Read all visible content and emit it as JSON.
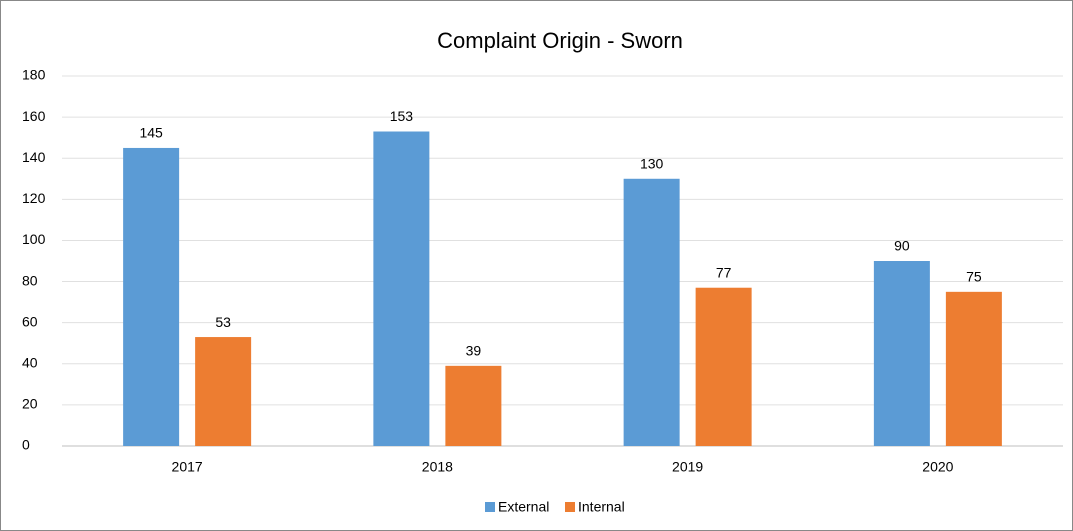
{
  "chart_data": {
    "type": "bar",
    "title": "Complaint Origin - Sworn",
    "categories": [
      "2017",
      "2018",
      "2019",
      "2020"
    ],
    "series": [
      {
        "name": "External",
        "color": "#5b9bd5",
        "values": [
          145,
          153,
          130,
          90
        ]
      },
      {
        "name": "Internal",
        "color": "#ed7d31",
        "values": [
          53,
          39,
          77,
          75
        ]
      }
    ],
    "ylim": [
      0,
      180
    ],
    "yticks": [
      0,
      20,
      40,
      60,
      80,
      100,
      120,
      140,
      160,
      180
    ],
    "grid": true,
    "legend": "bottom"
  }
}
